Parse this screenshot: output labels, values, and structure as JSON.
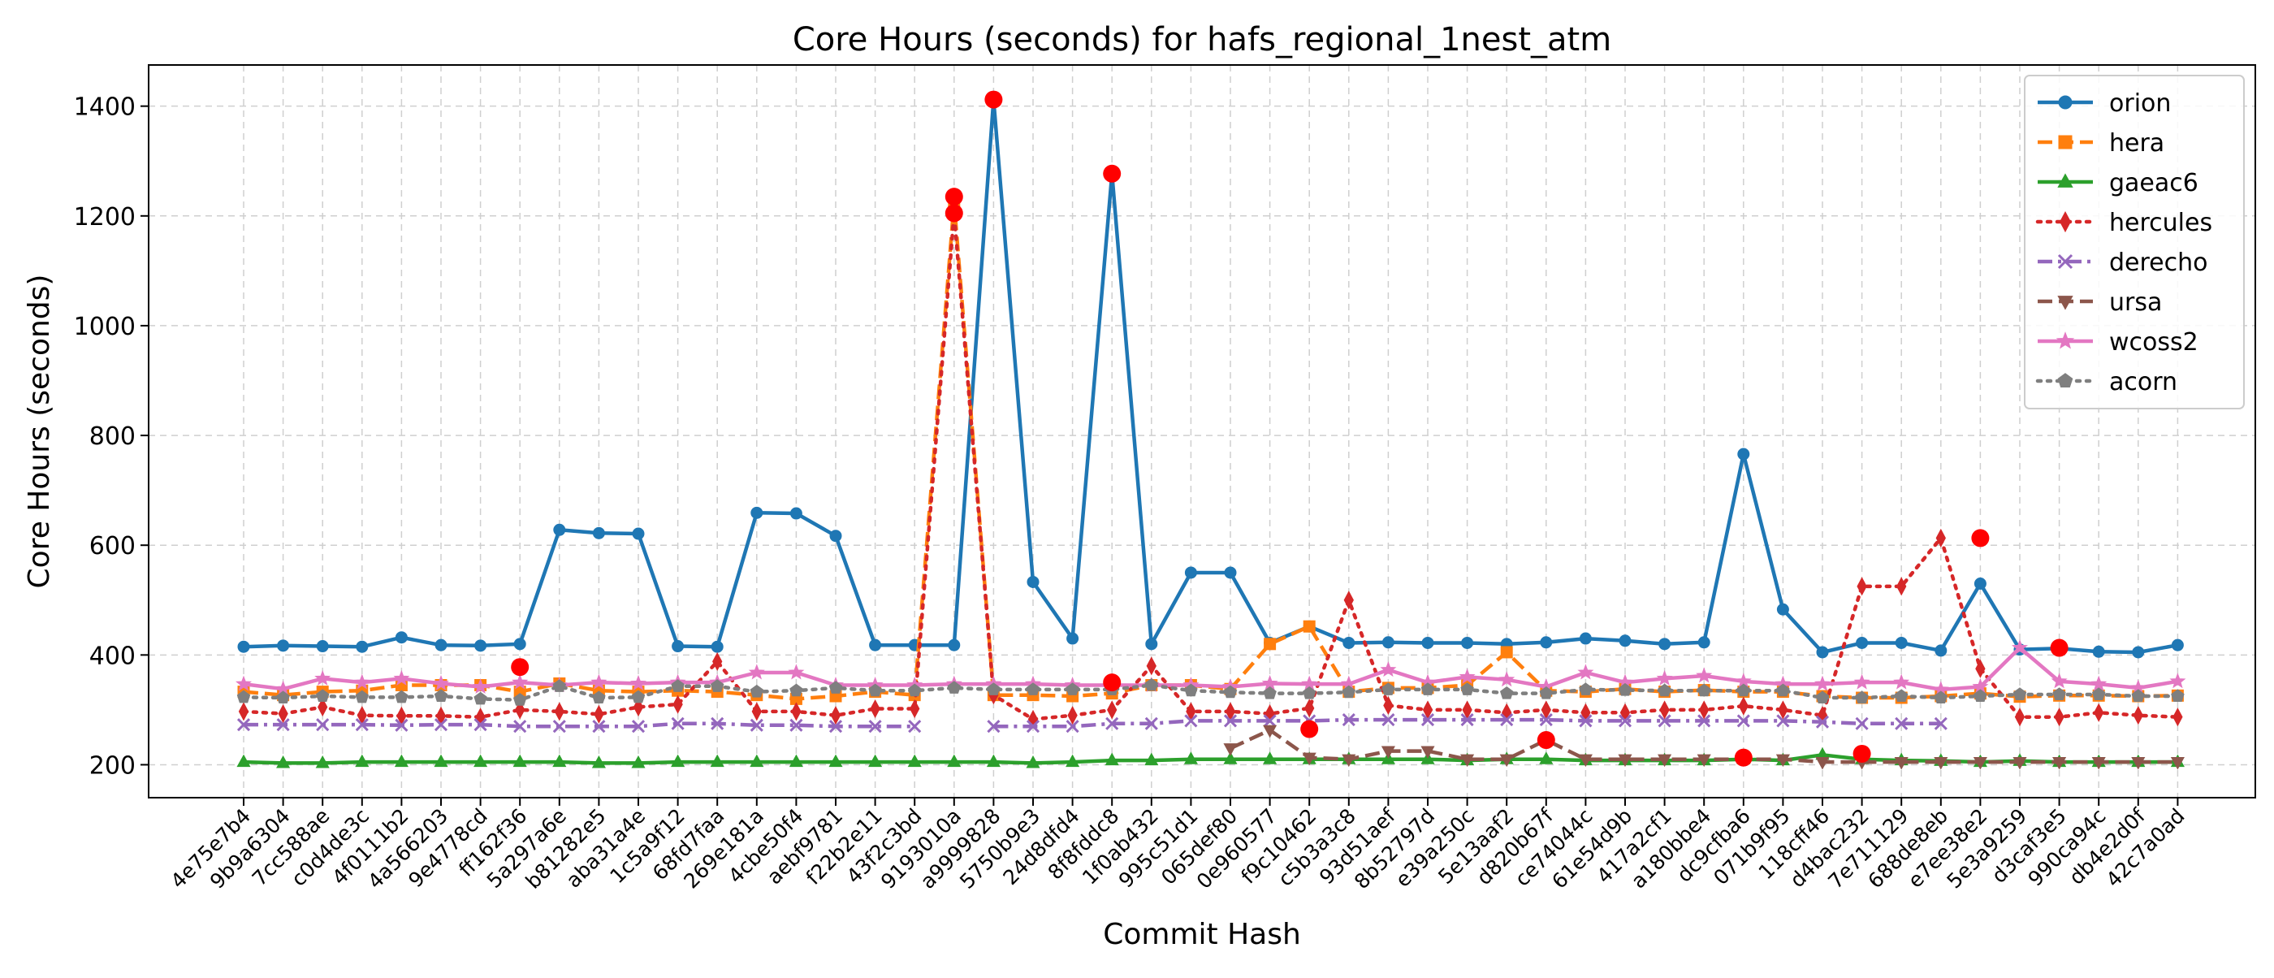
{
  "chart_data": {
    "type": "line",
    "title": "Core Hours (seconds) for hafs_regional_1nest_atm",
    "xlabel": "Commit Hash",
    "ylabel": "Core Hours (seconds)",
    "ylim": [
      140,
      1475
    ],
    "yticks": [
      200,
      400,
      600,
      800,
      1000,
      1200,
      1400
    ],
    "grid": true,
    "legend_position": "top-right",
    "categories": [
      "4e75e7b4",
      "9b9a6304",
      "7cc588ae",
      "c0d4de3c",
      "4f0111b2",
      "4a566203",
      "9e4778cd",
      "ff162f36",
      "5a297a6e",
      "b81282e5",
      "aba31a4e",
      "1c5a9f12",
      "68fd7faa",
      "269e181a",
      "4cbe50f4",
      "aebf9781",
      "f22b2e11",
      "43f2c3bd",
      "9193010a",
      "a9999828",
      "5750b9e3",
      "24d8dfd4",
      "8f8fddc8",
      "1f0ab432",
      "995c51d1",
      "065def80",
      "0e960577",
      "f9c10462",
      "c5b3a3c8",
      "93d51aef",
      "8b52797d",
      "e39a250c",
      "5e13aaf2",
      "d820b67f",
      "ce74044c",
      "61e54d9b",
      "417a2cf1",
      "a180bbe4",
      "dc9cfba6",
      "071b9f95",
      "118cff46",
      "d4bac232",
      "7e711129",
      "688de8eb",
      "e7ee38e2",
      "5e3a9259",
      "d3caf3e5",
      "990ca94c",
      "db4e2d0f",
      "42c7a0ad"
    ],
    "series": [
      {
        "name": "orion",
        "color": "#1f77b4",
        "marker": "circle",
        "dash": "solid",
        "values": [
          415,
          417,
          416,
          415,
          432,
          418,
          417,
          420,
          628,
          622,
          621,
          416,
          415,
          659,
          658,
          617,
          418,
          418,
          418,
          1412,
          533,
          430,
          1277,
          420,
          550,
          550,
          422,
          452,
          422,
          423,
          422,
          422,
          420,
          423,
          430,
          426,
          420,
          423,
          766,
          483,
          405,
          422,
          422,
          408,
          530,
          410,
          412,
          406,
          405,
          418
        ]
      },
      {
        "name": "hera",
        "color": "#ff7f0e",
        "marker": "square",
        "dash": "dash",
        "values": [
          333,
          327,
          333,
          335,
          345,
          345,
          345,
          333,
          348,
          335,
          333,
          335,
          333,
          327,
          320,
          325,
          333,
          327,
          1225,
          327,
          327,
          325,
          330,
          345,
          345,
          338,
          420,
          452,
          333,
          340,
          340,
          345,
          405,
          335,
          333,
          338,
          333,
          336,
          333,
          333,
          325,
          322,
          322,
          325,
          330,
          324,
          326,
          326,
          325,
          326
        ]
      },
      {
        "name": "gaeac6",
        "color": "#2ca02c",
        "marker": "triangle-up",
        "dash": "solid",
        "values": [
          205,
          203,
          203,
          205,
          205,
          205,
          205,
          205,
          205,
          203,
          203,
          205,
          205,
          205,
          205,
          205,
          205,
          205,
          205,
          205,
          203,
          205,
          208,
          208,
          210,
          210,
          210,
          210,
          210,
          210,
          210,
          208,
          210,
          210,
          208,
          208,
          208,
          208,
          210,
          208,
          218,
          210,
          208,
          207,
          205,
          207,
          205,
          205,
          205,
          205
        ]
      },
      {
        "name": "hercules",
        "color": "#d62728",
        "marker": "diamond",
        "dash": "dot",
        "values": [
          297,
          293,
          305,
          290,
          289,
          289,
          287,
          300,
          297,
          292,
          305,
          310,
          388,
          297,
          297,
          290,
          302,
          302,
          1205,
          327,
          283,
          290,
          300,
          380,
          297,
          297,
          293,
          303,
          500,
          308,
          300,
          300,
          295,
          300,
          295,
          295,
          300,
          300,
          307,
          300,
          290,
          525,
          525,
          613,
          375,
          287,
          287,
          295,
          290,
          287
        ]
      },
      {
        "name": "derecho",
        "color": "#9467bd",
        "marker": "x",
        "dash": "dashdot",
        "values": [
          273,
          273,
          273,
          273,
          272,
          273,
          273,
          270,
          270,
          270,
          270,
          275,
          275,
          272,
          272,
          270,
          270,
          270,
          null,
          270,
          270,
          270,
          275,
          275,
          280,
          280,
          280,
          280,
          282,
          282,
          282,
          282,
          282,
          282,
          280,
          280,
          280,
          280,
          280,
          280,
          278,
          275,
          275,
          275,
          null,
          null,
          null,
          null,
          null,
          null
        ]
      },
      {
        "name": "ursa",
        "color": "#8c564b",
        "marker": "triangle-down",
        "dash": "dash",
        "values": [
          null,
          null,
          null,
          null,
          null,
          null,
          null,
          null,
          null,
          null,
          null,
          null,
          null,
          null,
          null,
          null,
          null,
          null,
          null,
          null,
          null,
          null,
          null,
          null,
          null,
          230,
          263,
          213,
          210,
          225,
          225,
          210,
          210,
          245,
          210,
          210,
          210,
          210,
          210,
          210,
          205,
          205,
          205,
          205,
          205,
          205,
          205,
          205,
          205,
          205
        ]
      },
      {
        "name": "wcoss2",
        "color": "#e377c2",
        "marker": "star",
        "dash": "solid",
        "values": [
          347,
          338,
          357,
          350,
          357,
          348,
          342,
          350,
          345,
          350,
          348,
          350,
          350,
          368,
          368,
          345,
          345,
          345,
          347,
          347,
          347,
          345,
          345,
          345,
          345,
          342,
          348,
          347,
          347,
          373,
          350,
          360,
          355,
          342,
          368,
          350,
          357,
          362,
          352,
          347,
          347,
          350,
          350,
          337,
          342,
          413,
          352,
          347,
          340,
          352
        ]
      },
      {
        "name": "acorn",
        "color": "#7f7f7f",
        "marker": "pentagon",
        "dash": "dot",
        "values": [
          323,
          322,
          325,
          323,
          323,
          325,
          320,
          318,
          343,
          322,
          323,
          343,
          343,
          333,
          335,
          340,
          335,
          335,
          340,
          337,
          337,
          337,
          337,
          345,
          335,
          332,
          330,
          330,
          332,
          337,
          337,
          337,
          330,
          330,
          337,
          336,
          335,
          335,
          335,
          335,
          322,
          322,
          325,
          322,
          325,
          328,
          328,
          328,
          325,
          325
        ]
      }
    ],
    "highlighted_points": [
      {
        "category": "ff162f36",
        "value": 378
      },
      {
        "category": "9193010a",
        "value": 1235
      },
      {
        "category": "9193010a",
        "value": 1205
      },
      {
        "category": "a9999828",
        "value": 1412
      },
      {
        "category": "8f8fddc8",
        "value": 1277
      },
      {
        "category": "8f8fddc8",
        "value": 350
      },
      {
        "category": "f9c10462",
        "value": 265
      },
      {
        "category": "d820b67f",
        "value": 245
      },
      {
        "category": "dc9cfba6",
        "value": 213
      },
      {
        "category": "d4bac232",
        "value": 220
      },
      {
        "category": "e7ee38e2",
        "value": 613
      },
      {
        "category": "d3caf3e5",
        "value": 413
      }
    ],
    "highlight_color": "#ff0000"
  }
}
